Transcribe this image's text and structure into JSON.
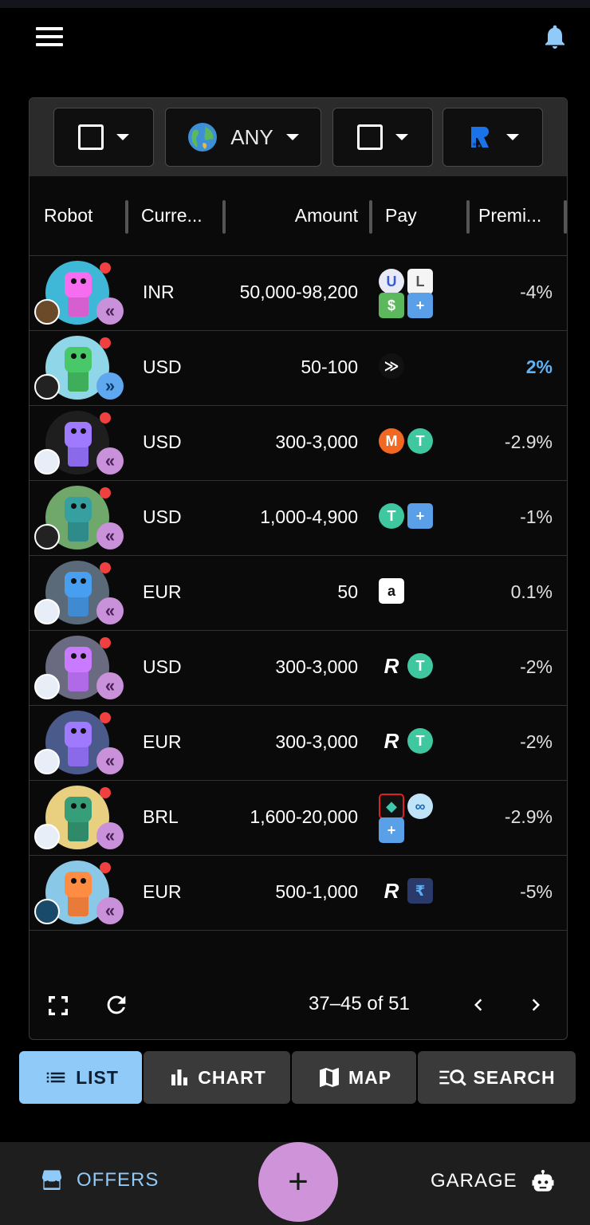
{
  "header": {
    "menu_icon": "hamburger-menu-icon",
    "bell_icon": "bell-icon"
  },
  "filters": {
    "type_icon": "checkbox-square-icon",
    "currency_label": "ANY",
    "currency_icon": "globe-icon",
    "payment_icon": "checkbox-square-icon",
    "coordinator_icon": "robosats-logo-icon"
  },
  "table": {
    "columns": [
      "Robot",
      "Curre...",
      "Amount",
      "Pay",
      "Premi..."
    ],
    "rows": [
      {
        "currency": "INR",
        "amount": "50,000-98,200",
        "premium": "-4%",
        "direction": "sell",
        "pay_icons": [
          "upi-icon",
          "lvpay-icon",
          "cash-icon",
          "more-methods-icon"
        ]
      },
      {
        "currency": "USD",
        "amount": "50-100",
        "premium": "2%",
        "direction": "buy",
        "pay_icons": [
          "paypal-like-icon"
        ]
      },
      {
        "currency": "USD",
        "amount": "300-3,000",
        "premium": "-2.9%",
        "direction": "sell",
        "pay_icons": [
          "monero-icon",
          "tether-icon"
        ]
      },
      {
        "currency": "USD",
        "amount": "1,000-4,900",
        "premium": "-1%",
        "direction": "sell",
        "pay_icons": [
          "tether-icon",
          "more-methods-icon"
        ]
      },
      {
        "currency": "EUR",
        "amount": "50",
        "premium": "0.1%",
        "direction": "sell",
        "pay_icons": [
          "amazon-icon"
        ]
      },
      {
        "currency": "USD",
        "amount": "300-3,000",
        "premium": "-2%",
        "direction": "sell",
        "pay_icons": [
          "revolut-icon",
          "tether-icon"
        ]
      },
      {
        "currency": "EUR",
        "amount": "300-3,000",
        "premium": "-2%",
        "direction": "sell",
        "pay_icons": [
          "revolut-icon",
          "tether-icon"
        ]
      },
      {
        "currency": "BRL",
        "amount": "1,600-20,000",
        "premium": "-2.9%",
        "direction": "sell",
        "pay_icons": [
          "pix-icon",
          "mercadopago-icon",
          "more-methods-icon"
        ]
      },
      {
        "currency": "EUR",
        "amount": "500-1,000",
        "premium": "-5%",
        "direction": "sell",
        "pay_icons": [
          "revolut-icon",
          "bizum-icon"
        ]
      }
    ]
  },
  "footer": {
    "pagination": "37–45 of 51"
  },
  "view_tabs": [
    {
      "label": "LIST",
      "icon": "list-icon",
      "active": true
    },
    {
      "label": "CHART",
      "icon": "bar-chart-icon",
      "active": false
    },
    {
      "label": "MAP",
      "icon": "map-icon",
      "active": false
    },
    {
      "label": "SEARCH",
      "icon": "search-icon",
      "active": false
    }
  ],
  "bottom_nav": {
    "offers_label": "OFFERS",
    "garage_label": "GARAGE",
    "fab_label": "+"
  },
  "colors": {
    "accent_blue": "#90caf9",
    "accent_purple": "#ce93d8",
    "background": "#000000"
  }
}
